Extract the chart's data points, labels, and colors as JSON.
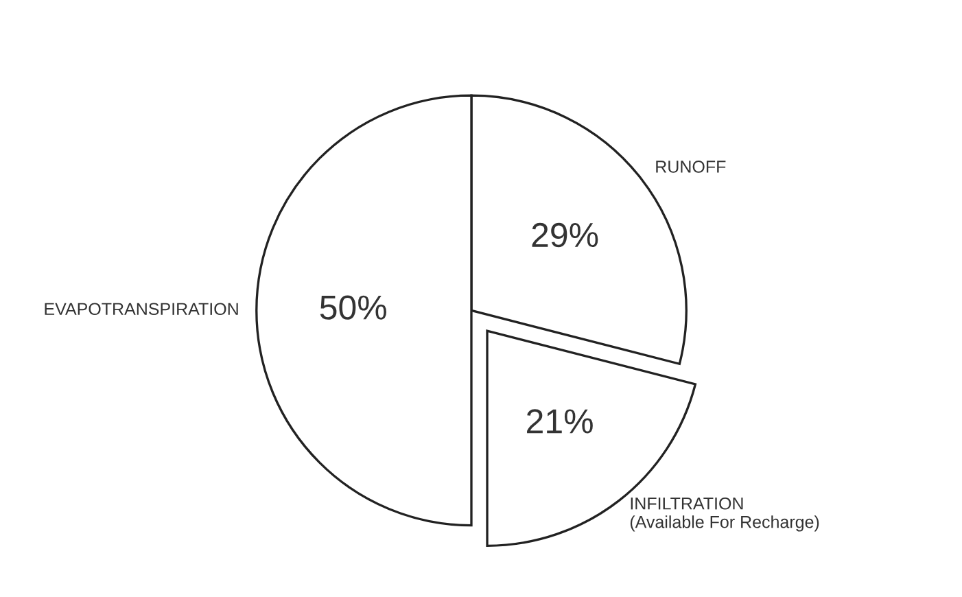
{
  "chart_data": {
    "type": "pie",
    "categories": [
      "RUNOFF",
      "INFILTRATION\n(Available For Recharge)",
      "EVAPOTRANSPIRATION"
    ],
    "values": [
      29,
      21,
      50
    ],
    "colors": [
      "#ffffff",
      "#ffffff",
      "#ffffff"
    ],
    "value_labels": [
      "29%",
      "21%",
      "50%"
    ]
  }
}
